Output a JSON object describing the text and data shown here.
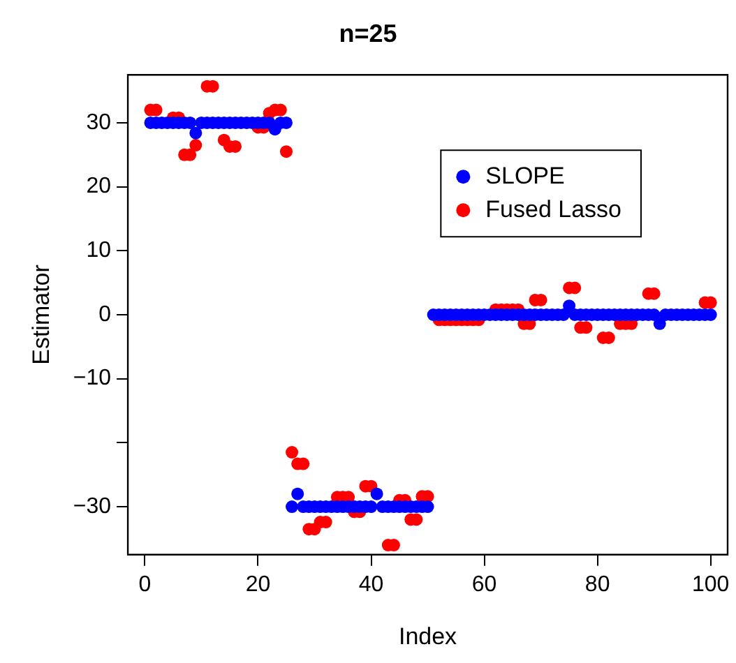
{
  "chart_data": {
    "type": "scatter",
    "title": "n=25",
    "xlabel": "Index",
    "ylabel": "Estimator",
    "x": [
      1,
      2,
      3,
      4,
      5,
      6,
      7,
      8,
      9,
      10,
      11,
      12,
      13,
      14,
      15,
      16,
      17,
      18,
      19,
      20,
      21,
      22,
      23,
      24,
      25,
      26,
      27,
      28,
      29,
      30,
      31,
      32,
      33,
      34,
      35,
      36,
      37,
      38,
      39,
      40,
      41,
      42,
      43,
      44,
      45,
      46,
      47,
      48,
      49,
      50,
      51,
      52,
      53,
      54,
      55,
      56,
      57,
      58,
      59,
      60,
      61,
      62,
      63,
      64,
      65,
      66,
      67,
      68,
      69,
      70,
      71,
      72,
      73,
      74,
      75,
      76,
      77,
      78,
      79,
      80,
      81,
      82,
      83,
      84,
      85,
      86,
      87,
      88,
      89,
      90,
      91,
      92,
      93,
      94,
      95,
      96,
      97,
      98,
      99,
      100
    ],
    "series": [
      {
        "name": "Fused Lasso",
        "color": "#ff0000",
        "values": [
          32,
          32,
          null,
          null,
          30.8,
          30.8,
          25,
          25,
          26.5,
          null,
          35.7,
          35.7,
          null,
          27.3,
          26.3,
          26.3,
          null,
          null,
          null,
          29.3,
          29.3,
          31.5,
          32,
          32,
          25.5,
          -21.5,
          -23.3,
          -23.3,
          -33.5,
          -33.5,
          -32.4,
          -32.4,
          null,
          -28.5,
          -28.5,
          -28.5,
          -30.8,
          -30.8,
          -26.8,
          -26.8,
          null,
          null,
          -36,
          -36,
          -29,
          -29,
          -32,
          -32,
          -28.4,
          -28.4,
          null,
          -0.8,
          -0.8,
          -0.8,
          -0.8,
          -0.8,
          -0.8,
          -0.8,
          -0.8,
          null,
          null,
          0.8,
          0.8,
          0.8,
          0.8,
          0.8,
          -1.4,
          -1.4,
          2.3,
          2.3,
          null,
          null,
          null,
          null,
          4.2,
          4.2,
          -2,
          -2,
          null,
          null,
          -3.6,
          -3.6,
          null,
          -1.4,
          -1.4,
          -1.4,
          null,
          null,
          3.3,
          3.3,
          null,
          null,
          null,
          null,
          null,
          null,
          null,
          null,
          1.9,
          1.9
        ]
      },
      {
        "name": "SLOPE",
        "color": "#0000ff",
        "values": [
          30,
          30,
          30,
          30,
          30,
          30,
          30,
          30,
          28.4,
          30,
          30,
          30,
          30,
          30,
          30,
          30,
          30,
          30,
          30,
          30,
          30,
          30,
          29,
          30,
          30,
          -30,
          -28,
          -30,
          -30,
          -30,
          -30,
          -30,
          -30,
          -30,
          -30,
          -30,
          -30,
          -30,
          -30,
          -30,
          -28,
          -30,
          -30,
          -30,
          -30,
          -30,
          -30,
          -30,
          -30,
          -30,
          0,
          0,
          0,
          0,
          0,
          0,
          0,
          0,
          0,
          0,
          0,
          0,
          0,
          0,
          0,
          0,
          0,
          0,
          0,
          0,
          0,
          0,
          0,
          0,
          1.4,
          0,
          0,
          0,
          0,
          0,
          0,
          0,
          0,
          0,
          0,
          0,
          0,
          0,
          0,
          0,
          -1.4,
          0,
          0,
          0,
          0,
          0,
          0,
          0,
          0,
          0
        ]
      }
    ],
    "xlim": [
      -3,
      103
    ],
    "xticks": [
      0,
      20,
      40,
      60,
      80,
      100
    ],
    "ylim": [
      -37.5,
      37.5
    ],
    "yticks": [
      -30,
      {
        "value": -20,
        "label": null
      },
      -10,
      0,
      10,
      20,
      30
    ],
    "legend": "top right",
    "marker": "circle",
    "grid": false
  }
}
